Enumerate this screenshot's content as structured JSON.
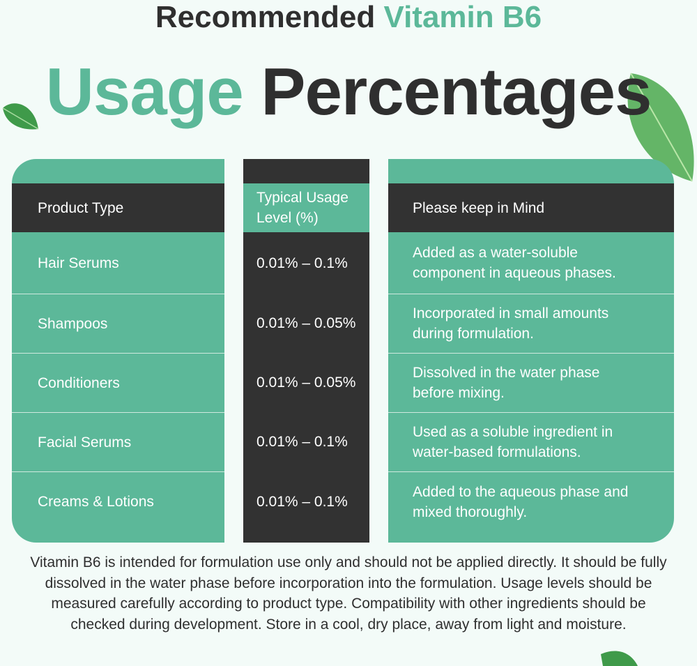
{
  "title": {
    "line1_dark": "Recommended",
    "line1_green": "Vitamin B6",
    "line2_green": "Usage",
    "line2_dark": "Percentages"
  },
  "table": {
    "headers": [
      "Product Type",
      "Typical Usage Level (%)",
      "Please keep in Mind"
    ],
    "rows": [
      {
        "product": "Hair Serums",
        "level": "0.01% – 0.1%",
        "note": "Added as a water-soluble component in aqueous phases."
      },
      {
        "product": "Shampoos",
        "level": "0.01% – 0.05%",
        "note": "Incorporated in small amounts during formulation."
      },
      {
        "product": "Conditioners",
        "level": "0.01% – 0.05%",
        "note": "Dissolved in the water phase before mixing."
      },
      {
        "product": "Facial Serums",
        "level": "0.01% – 0.1%",
        "note": "Used as a soluble ingredient in water-based formulations."
      },
      {
        "product": "Creams & Lotions",
        "level": "0.01% – 0.1%",
        "note": "Added to the aqueous phase and mixed thoroughly."
      }
    ]
  },
  "footer_text": "Vitamin B6 is intended for formulation use only and should not be applied directly. It should be fully dissolved in the water phase before incorporation into the formulation. Usage levels should be measured carefully according to product type. Compatibility with other ingredients should be checked during development. Store in a cool, dry place, away from light and moisture.",
  "colors": {
    "green": "#5cb899",
    "dark": "#323232",
    "background": "#f3fbf8"
  }
}
